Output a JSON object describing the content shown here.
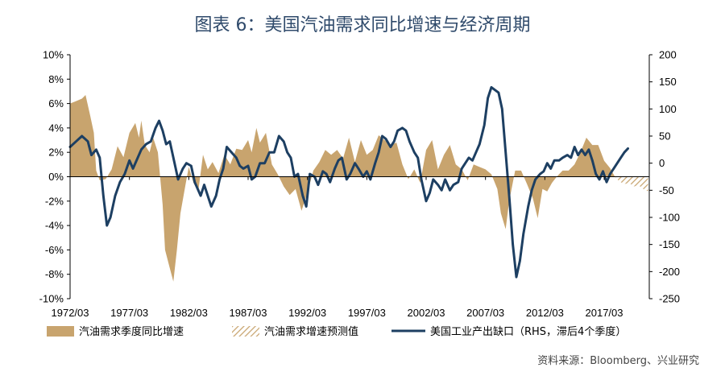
{
  "chart_data": {
    "type": "area+line",
    "title": "图表 6：美国汽油需求同比增速与经济周期",
    "source": "资料来源：Bloomberg、兴业研究",
    "x_labels": [
      "1972/03",
      "1977/03",
      "1982/03",
      "1987/03",
      "1992/03",
      "1997/03",
      "2002/03",
      "2007/03",
      "2012/03",
      "2017/03"
    ],
    "x_range": [
      1972.0,
      2020.8
    ],
    "left_axis": {
      "ylim": [
        -10,
        10
      ],
      "ticks": [
        "10%",
        "8%",
        "6%",
        "4%",
        "2%",
        "0%",
        "-2%",
        "-4%",
        "-6%",
        "-8%",
        "-10%"
      ],
      "tick_values": [
        10,
        8,
        6,
        4,
        2,
        0,
        -2,
        -4,
        -6,
        -8,
        -10
      ]
    },
    "right_axis": {
      "ylim": [
        -250,
        200
      ],
      "ticks": [
        "200",
        "150",
        "100",
        "50",
        "0",
        "-50",
        "-100",
        "-150",
        "-200",
        "-250"
      ],
      "tick_values": [
        200,
        150,
        100,
        50,
        0,
        -50,
        -100,
        -150,
        -200,
        -250
      ]
    },
    "series": [
      {
        "name": "汽油需求季度同比增速",
        "kind": "area",
        "color": "#c8a46e",
        "axis": "left",
        "points": [
          [
            1972.0,
            6.0
          ],
          [
            1972.5,
            6.2
          ],
          [
            1973.0,
            6.4
          ],
          [
            1973.3,
            6.7
          ],
          [
            1973.7,
            5.0
          ],
          [
            1974.0,
            3.6
          ],
          [
            1974.2,
            0.5
          ],
          [
            1974.5,
            -0.3
          ],
          [
            1975.0,
            -0.2
          ],
          [
            1975.5,
            0.6
          ],
          [
            1976.0,
            2.5
          ],
          [
            1976.5,
            1.6
          ],
          [
            1977.0,
            3.6
          ],
          [
            1977.5,
            4.4
          ],
          [
            1977.8,
            3.2
          ],
          [
            1978.0,
            4.6
          ],
          [
            1978.3,
            2.6
          ],
          [
            1978.7,
            2.0
          ],
          [
            1979.0,
            3.2
          ],
          [
            1979.4,
            2.0
          ],
          [
            1979.8,
            -2.3
          ],
          [
            1980.0,
            -6.0
          ],
          [
            1980.4,
            -7.5
          ],
          [
            1980.7,
            -8.6
          ],
          [
            1981.0,
            -6.0
          ],
          [
            1981.3,
            -3.0
          ],
          [
            1981.7,
            -0.8
          ],
          [
            1982.0,
            0.8
          ],
          [
            1982.4,
            -0.5
          ],
          [
            1982.8,
            -1.2
          ],
          [
            1983.2,
            1.8
          ],
          [
            1983.6,
            0.6
          ],
          [
            1984.0,
            1.2
          ],
          [
            1984.5,
            0.3
          ],
          [
            1985.0,
            1.8
          ],
          [
            1985.5,
            1.0
          ],
          [
            1986.0,
            2.3
          ],
          [
            1986.5,
            2.2
          ],
          [
            1987.0,
            3.0
          ],
          [
            1987.3,
            2.0
          ],
          [
            1987.7,
            4.0
          ],
          [
            1988.0,
            2.8
          ],
          [
            1988.5,
            3.6
          ],
          [
            1989.0,
            1.0
          ],
          [
            1989.5,
            0.2
          ],
          [
            1990.0,
            -0.8
          ],
          [
            1990.5,
            -1.5
          ],
          [
            1991.0,
            -1.0
          ],
          [
            1991.5,
            -2.8
          ],
          [
            1992.0,
            -1.3
          ],
          [
            1992.5,
            0.5
          ],
          [
            1993.0,
            1.2
          ],
          [
            1993.5,
            2.2
          ],
          [
            1994.0,
            1.8
          ],
          [
            1994.5,
            2.2
          ],
          [
            1995.0,
            1.5
          ],
          [
            1995.5,
            3.2
          ],
          [
            1996.0,
            1.2
          ],
          [
            1996.5,
            3.0
          ],
          [
            1997.0,
            1.8
          ],
          [
            1997.5,
            2.2
          ],
          [
            1998.0,
            3.4
          ],
          [
            1998.5,
            3.0
          ],
          [
            1999.0,
            2.6
          ],
          [
            1999.5,
            2.8
          ],
          [
            2000.0,
            1.0
          ],
          [
            2000.5,
            -0.2
          ],
          [
            2001.0,
            0.6
          ],
          [
            2001.5,
            -0.5
          ],
          [
            2002.0,
            2.2
          ],
          [
            2002.5,
            3.0
          ],
          [
            2003.0,
            0.6
          ],
          [
            2003.5,
            1.8
          ],
          [
            2004.0,
            2.6
          ],
          [
            2004.5,
            1.0
          ],
          [
            2005.0,
            0.6
          ],
          [
            2005.5,
            -0.3
          ],
          [
            2006.0,
            1.0
          ],
          [
            2006.5,
            0.8
          ],
          [
            2007.0,
            0.6
          ],
          [
            2007.5,
            0.2
          ],
          [
            2008.0,
            -1.0
          ],
          [
            2008.3,
            -3.0
          ],
          [
            2008.7,
            -4.3
          ],
          [
            2009.0,
            -2.0
          ],
          [
            2009.5,
            0.5
          ],
          [
            2010.0,
            0.5
          ],
          [
            2010.5,
            -0.6
          ],
          [
            2011.0,
            -1.8
          ],
          [
            2011.4,
            -3.4
          ],
          [
            2011.8,
            -1.0
          ],
          [
            2012.2,
            -1.2
          ],
          [
            2012.6,
            -0.5
          ],
          [
            2013.0,
            0.0
          ],
          [
            2013.5,
            0.5
          ],
          [
            2014.0,
            0.5
          ],
          [
            2014.5,
            1.0
          ],
          [
            2015.0,
            2.0
          ],
          [
            2015.5,
            3.2
          ],
          [
            2016.0,
            2.6
          ],
          [
            2016.5,
            2.6
          ],
          [
            2017.0,
            1.3
          ],
          [
            2017.5,
            0.7
          ],
          [
            2017.9,
            0.0
          ]
        ]
      },
      {
        "name": "汽油需求增速预测值",
        "kind": "hatched-area",
        "color": "#c8a46e",
        "axis": "left",
        "points": [
          [
            2017.9,
            0.0
          ],
          [
            2018.3,
            -0.4
          ],
          [
            2018.7,
            -0.6
          ],
          [
            2019.1,
            -0.5
          ],
          [
            2019.5,
            -0.8
          ],
          [
            2019.9,
            -0.7
          ],
          [
            2020.3,
            -1.0
          ],
          [
            2020.7,
            -1.2
          ]
        ]
      },
      {
        "name": "美国工业产出缺口（RHS，滞后4个季度）",
        "kind": "line",
        "color": "#1d3f62",
        "axis": "right",
        "points": [
          [
            1972.0,
            30
          ],
          [
            1972.5,
            40
          ],
          [
            1973.0,
            50
          ],
          [
            1973.5,
            40
          ],
          [
            1973.8,
            15
          ],
          [
            1974.2,
            25
          ],
          [
            1974.5,
            10
          ],
          [
            1974.8,
            -60
          ],
          [
            1975.1,
            -115
          ],
          [
            1975.4,
            -100
          ],
          [
            1975.8,
            -60
          ],
          [
            1976.2,
            -35
          ],
          [
            1976.6,
            -20
          ],
          [
            1977.0,
            5
          ],
          [
            1977.3,
            -10
          ],
          [
            1977.7,
            10
          ],
          [
            1978.0,
            25
          ],
          [
            1978.4,
            35
          ],
          [
            1978.8,
            40
          ],
          [
            1979.2,
            65
          ],
          [
            1979.5,
            78
          ],
          [
            1979.8,
            60
          ],
          [
            1980.1,
            35
          ],
          [
            1980.4,
            40
          ],
          [
            1980.8,
            0
          ],
          [
            1981.1,
            -30
          ],
          [
            1981.5,
            -10
          ],
          [
            1981.8,
            0
          ],
          [
            1982.2,
            -5
          ],
          [
            1982.5,
            -35
          ],
          [
            1983.0,
            -60
          ],
          [
            1983.3,
            -40
          ],
          [
            1983.6,
            -60
          ],
          [
            1983.9,
            -80
          ],
          [
            1984.3,
            -60
          ],
          [
            1984.6,
            -30
          ],
          [
            1984.9,
            -10
          ],
          [
            1985.2,
            30
          ],
          [
            1985.6,
            20
          ],
          [
            1986.0,
            10
          ],
          [
            1986.3,
            -5
          ],
          [
            1986.6,
            -10
          ],
          [
            1987.0,
            -5
          ],
          [
            1987.3,
            -30
          ],
          [
            1987.6,
            -25
          ],
          [
            1988.0,
            0
          ],
          [
            1988.4,
            0
          ],
          [
            1988.8,
            20
          ],
          [
            1989.2,
            20
          ],
          [
            1989.6,
            50
          ],
          [
            1990.0,
            40
          ],
          [
            1990.3,
            20
          ],
          [
            1990.6,
            10
          ],
          [
            1990.9,
            -25
          ],
          [
            1991.2,
            -20
          ],
          [
            1991.6,
            -60
          ],
          [
            1991.9,
            -80
          ],
          [
            1992.2,
            -20
          ],
          [
            1992.6,
            -25
          ],
          [
            1992.9,
            -40
          ],
          [
            1993.3,
            -15
          ],
          [
            1993.6,
            -20
          ],
          [
            1993.9,
            -35
          ],
          [
            1994.3,
            -10
          ],
          [
            1994.6,
            5
          ],
          [
            1994.9,
            10
          ],
          [
            1995.3,
            -30
          ],
          [
            1995.6,
            -20
          ],
          [
            1996.0,
            0
          ],
          [
            1996.3,
            -10
          ],
          [
            1996.7,
            -25
          ],
          [
            1997.0,
            -15
          ],
          [
            1997.3,
            -30
          ],
          [
            1997.7,
            0
          ],
          [
            1998.0,
            20
          ],
          [
            1998.3,
            50
          ],
          [
            1998.6,
            45
          ],
          [
            1999.0,
            30
          ],
          [
            1999.3,
            40
          ],
          [
            1999.6,
            60
          ],
          [
            2000.0,
            65
          ],
          [
            2000.3,
            60
          ],
          [
            2000.6,
            40
          ],
          [
            2001.0,
            20
          ],
          [
            2001.3,
            10
          ],
          [
            2001.6,
            -30
          ],
          [
            2002.0,
            -70
          ],
          [
            2002.3,
            -55
          ],
          [
            2002.6,
            -30
          ],
          [
            2003.0,
            -40
          ],
          [
            2003.3,
            -50
          ],
          [
            2003.6,
            -30
          ],
          [
            2004.0,
            -50
          ],
          [
            2004.3,
            -40
          ],
          [
            2004.7,
            -35
          ],
          [
            2005.0,
            -10
          ],
          [
            2005.3,
            0
          ],
          [
            2005.6,
            10
          ],
          [
            2005.9,
            5
          ],
          [
            2006.2,
            20
          ],
          [
            2006.5,
            35
          ],
          [
            2006.9,
            70
          ],
          [
            2007.2,
            120
          ],
          [
            2007.5,
            140
          ],
          [
            2007.8,
            135
          ],
          [
            2008.1,
            130
          ],
          [
            2008.4,
            100
          ],
          [
            2008.7,
            20
          ],
          [
            2009.0,
            -60
          ],
          [
            2009.3,
            -150
          ],
          [
            2009.6,
            -210
          ],
          [
            2009.9,
            -180
          ],
          [
            2010.2,
            -130
          ],
          [
            2010.6,
            -80
          ],
          [
            2010.9,
            -50
          ],
          [
            2011.2,
            -30
          ],
          [
            2011.6,
            -20
          ],
          [
            2011.9,
            -15
          ],
          [
            2012.2,
            0
          ],
          [
            2012.5,
            -10
          ],
          [
            2012.8,
            5
          ],
          [
            2013.2,
            5
          ],
          [
            2013.5,
            10
          ],
          [
            2013.9,
            15
          ],
          [
            2014.2,
            10
          ],
          [
            2014.5,
            30
          ],
          [
            2014.8,
            15
          ],
          [
            2015.1,
            25
          ],
          [
            2015.4,
            15
          ],
          [
            2015.7,
            25
          ],
          [
            2016.0,
            5
          ],
          [
            2016.3,
            -20
          ],
          [
            2016.6,
            -30
          ],
          [
            2016.9,
            -15
          ],
          [
            2017.2,
            -35
          ],
          [
            2017.5,
            -20
          ],
          [
            2017.8,
            -10
          ],
          [
            2018.1,
            0
          ],
          [
            2018.4,
            10
          ],
          [
            2018.7,
            20
          ],
          [
            2019.0,
            27
          ]
        ]
      }
    ],
    "legend": [
      {
        "label": "汽油需求季度同比增速",
        "marker": "area"
      },
      {
        "label": "汽油需求增速预测值",
        "marker": "hatched"
      },
      {
        "label": "美国工业产出缺口（RHS，滞后4个季度）",
        "marker": "line"
      }
    ],
    "grid": false
  }
}
